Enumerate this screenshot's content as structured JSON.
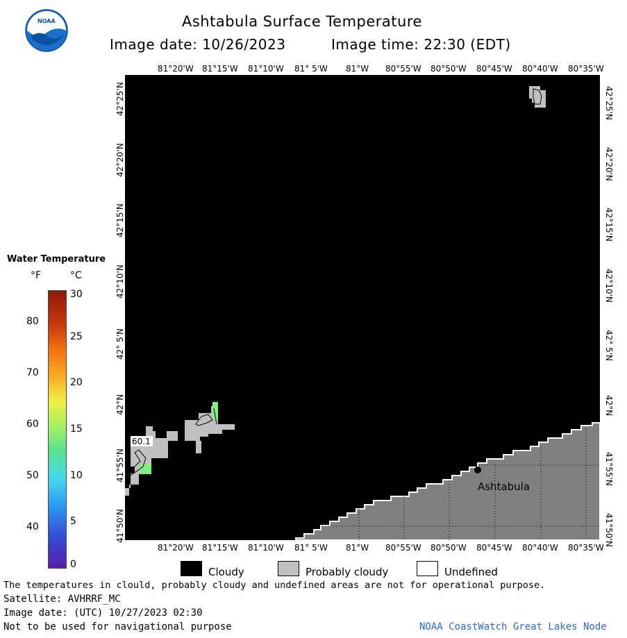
{
  "header": {
    "title": "Ashtabula Surface Temperature",
    "image_date": "Image date: 10/26/2023",
    "image_time": "Image time: 22:30 (EDT)"
  },
  "logo": {
    "text": "NOAA"
  },
  "lon_ticks": [
    "81°20'W",
    "81°15'W",
    "81°10'W",
    "81° 5'W",
    "81°W",
    "80°55'W",
    "80°50'W",
    "80°45'W",
    "80°40'W",
    "80°35'W"
  ],
  "lat_ticks": [
    "42°25'N",
    "42°20'N",
    "42°15'N",
    "42°10'N",
    "42° 5'N",
    "42°N",
    "41°55'N",
    "41°50'N"
  ],
  "map": {
    "city_label": "Ashtabula",
    "temp_label": "60.1",
    "colors": {
      "cloud": "#000000",
      "land": "#808080",
      "probably_cloudy": "#c0c0c0",
      "warm_water": "#7ff07f"
    }
  },
  "colorbar": {
    "title": "Water Temperature",
    "unit_f": "°F",
    "unit_c": "°C",
    "f_ticks": [
      "80",
      "70",
      "60",
      "50",
      "40"
    ],
    "c_ticks": [
      "30",
      "25",
      "20",
      "15",
      "10",
      "5",
      "0"
    ]
  },
  "legend": {
    "cloudy": "Cloudy",
    "probably_cloudy": "Probably cloudy",
    "undefined": "Undefined"
  },
  "footer": {
    "note": "The temperatures in clould, probably cloudy and undefined areas are not for operational purpose.",
    "satellite": "Satellite: AVHRRF_MC",
    "utc_date": "Image date: (UTC) 10/27/2023  02:30",
    "nav_note": "Not to be used for navigational purpose",
    "credit": "NOAA CoastWatch Great Lakes Node"
  }
}
